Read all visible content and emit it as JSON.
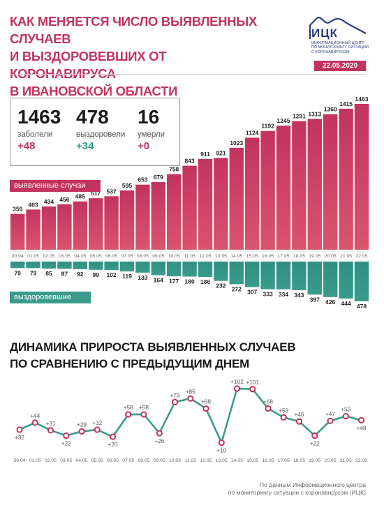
{
  "title": {
    "lines": [
      "КАК МЕНЯЕТСЯ ЧИСЛО ВЫЯВЛЕННЫХ СЛУЧАЕВ",
      "И ВЫЗДОРОВЕВШИХ ОТ КОРОНАВИРУСА",
      "В ИВАНОВСКОЙ ОБЛАСТИ"
    ]
  },
  "logo": {
    "name": "ИЦК",
    "sub": [
      "ИНФОРМАЦИОННЫЙ ЦЕНТР",
      "ПО МОНИТОРИНГУ СИТУАЦИИ",
      "С КОРОНАВИРУСОМ"
    ]
  },
  "date": "22.05.2020",
  "stats": [
    {
      "value": "1463",
      "label": "заболели",
      "delta": "+48"
    },
    {
      "value": "478",
      "label": "выздоровели",
      "delta": "+34"
    },
    {
      "value": "16",
      "label": "умерли",
      "delta": "+0"
    }
  ],
  "colors": {
    "cases": "#c2345f",
    "recovered": "#3a9b8c",
    "line": "#3a9b8c",
    "marker": "#c2345f"
  },
  "legend": {
    "cases": "выявленные случаи",
    "recovered": "выздоровевшие"
  },
  "section2": {
    "lines": [
      "ДИНАМИКА ПРИРОСТА ВЫЯВЛЕННЫХ СЛУЧАЕВ",
      "ПО СРАВНЕНИЮ С ПРЕДЫДУЩИМ ДНЕМ"
    ]
  },
  "source": {
    "lines": [
      "По данным Информационного центра",
      "по мониторингу ситуации с коронавирусом (ИЦК)"
    ]
  },
  "chart_data": [
    {
      "type": "bar",
      "categories": [
        "30.04",
        "01.05",
        "02.05",
        "03.05",
        "04.05",
        "05.05",
        "06.05",
        "07.05",
        "08.05",
        "09.05",
        "10.05",
        "11.05",
        "12.05",
        "13.05",
        "14.05",
        "15.05",
        "16.05",
        "17.05",
        "18.05",
        "19.05",
        "20.05",
        "21.05",
        "22.05"
      ],
      "series": [
        {
          "name": "выявленные случаи",
          "values": [
            359,
            403,
            434,
            456,
            485,
            517,
            537,
            595,
            653,
            679,
            758,
            843,
            911,
            921,
            1023,
            1124,
            1192,
            1245,
            1291,
            1313,
            1360,
            1415,
            1463
          ]
        },
        {
          "name": "выздоровевшие",
          "values": [
            79,
            79,
            85,
            87,
            92,
            99,
            102,
            119,
            133,
            164,
            177,
            180,
            186,
            232,
            272,
            307,
            333,
            334,
            343,
            397,
            426,
            444,
            478
          ]
        }
      ]
    },
    {
      "type": "line",
      "categories": [
        "30.04",
        "01.05",
        "02.05",
        "03.05",
        "04.05",
        "05.05",
        "06.05",
        "07.05",
        "08.05",
        "09.05",
        "10.05",
        "11.05",
        "12.05",
        "13.05",
        "14.05",
        "15.05",
        "16.05",
        "17.05",
        "18.05",
        "19.05",
        "20.05",
        "21.05",
        "22.05"
      ],
      "values": [
        32,
        44,
        31,
        22,
        29,
        32,
        20,
        58,
        58,
        26,
        79,
        85,
        68,
        10,
        102,
        101,
        68,
        53,
        46,
        22,
        47,
        55,
        48
      ],
      "labels": [
        "+32",
        "+44",
        "+31",
        "+22",
        "+29",
        "+32",
        "+20",
        "+58",
        "+58",
        "+26",
        "+79",
        "+85",
        "+68",
        "+10",
        "+102",
        "+101",
        "+68",
        "+53",
        "+46",
        "+22",
        "+47",
        "+55",
        "+48"
      ]
    }
  ]
}
